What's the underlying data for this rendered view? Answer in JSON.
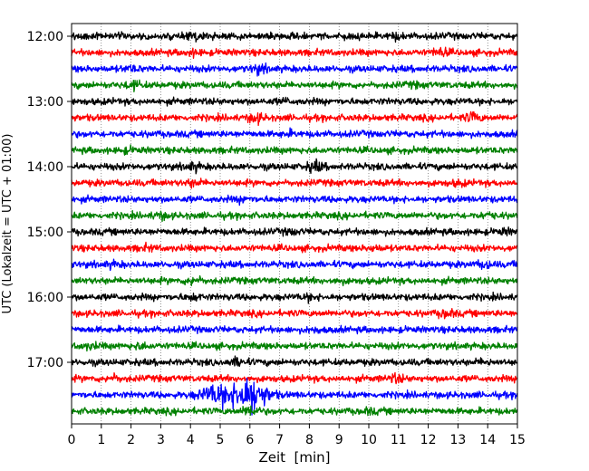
{
  "chart_data": {
    "type": "line",
    "title": "",
    "xlabel": "Zeit  [min]",
    "ylabel": "UTC (Lokalzeit = UTC + 01:00)",
    "xlim": [
      0,
      15
    ],
    "x_ticks": [
      0,
      1,
      2,
      3,
      4,
      5,
      6,
      7,
      8,
      9,
      10,
      11,
      12,
      13,
      14,
      15
    ],
    "y_tick_labels": [
      "12:00",
      "13:00",
      "14:00",
      "15:00",
      "16:00",
      "17:00"
    ],
    "grid": "vertical dotted lines at each minute",
    "trace_colors": [
      "#000000",
      "#ff0000",
      "#0000ff",
      "#008000"
    ],
    "row_interval_minutes": 15,
    "series": [
      {
        "start": "12:00",
        "color": "#000000",
        "bursts": [
          {
            "t": 4.1,
            "amp": 1.6
          },
          {
            "t": 10.9,
            "amp": 1.6
          }
        ]
      },
      {
        "start": "12:15",
        "color": "#ff0000",
        "bursts": [
          {
            "t": 4.1,
            "amp": 1.5
          },
          {
            "t": 12.4,
            "amp": 1.8
          }
        ]
      },
      {
        "start": "12:30",
        "color": "#0000ff",
        "bursts": [
          {
            "t": 2.0,
            "amp": 1.5
          },
          {
            "t": 6.3,
            "amp": 1.9
          }
        ]
      },
      {
        "start": "12:45",
        "color": "#008000",
        "bursts": [
          {
            "t": 2.1,
            "amp": 1.8
          },
          {
            "t": 11.5,
            "amp": 1.3
          }
        ]
      },
      {
        "start": "13:00",
        "color": "#000000",
        "bursts": [
          {
            "t": 7.2,
            "amp": 1.3
          }
        ]
      },
      {
        "start": "13:15",
        "color": "#ff0000",
        "bursts": [
          {
            "t": 6.2,
            "amp": 2.0
          },
          {
            "t": 13.5,
            "amp": 2.0
          }
        ]
      },
      {
        "start": "13:30",
        "color": "#0000ff",
        "bursts": [
          {
            "t": 7.3,
            "amp": 1.4
          }
        ]
      },
      {
        "start": "13:45",
        "color": "#008000",
        "bursts": [
          {
            "t": 1.9,
            "amp": 1.4
          }
        ]
      },
      {
        "start": "14:00",
        "color": "#000000",
        "bursts": [
          {
            "t": 4.1,
            "amp": 1.8
          },
          {
            "t": 8.2,
            "amp": 2.2
          }
        ]
      },
      {
        "start": "14:15",
        "color": "#ff0000",
        "bursts": [
          {
            "t": 4.1,
            "amp": 1.6
          },
          {
            "t": 13.0,
            "amp": 1.4
          }
        ]
      },
      {
        "start": "14:30",
        "color": "#0000ff",
        "bursts": [
          {
            "t": 5.8,
            "amp": 1.5
          }
        ]
      },
      {
        "start": "14:45",
        "color": "#008000",
        "bursts": [
          {
            "t": 3.0,
            "amp": 1.6
          },
          {
            "t": 14.0,
            "amp": 1.4
          }
        ]
      },
      {
        "start": "15:00",
        "color": "#000000",
        "bursts": [
          {
            "t": 7.4,
            "amp": 1.4
          },
          {
            "t": 14.6,
            "amp": 1.4
          }
        ]
      },
      {
        "start": "15:15",
        "color": "#ff0000",
        "bursts": [
          {
            "t": 2.5,
            "amp": 1.4
          },
          {
            "t": 10.2,
            "amp": 1.4
          }
        ]
      },
      {
        "start": "15:30",
        "color": "#0000ff",
        "bursts": [
          {
            "t": 1.4,
            "amp": 1.5
          },
          {
            "t": 13.9,
            "amp": 1.7
          }
        ]
      },
      {
        "start": "15:45",
        "color": "#008000",
        "bursts": [
          {
            "t": 4.1,
            "amp": 1.8
          },
          {
            "t": 9.0,
            "amp": 1.3
          }
        ]
      },
      {
        "start": "16:00",
        "color": "#000000",
        "bursts": [
          {
            "t": 4.1,
            "amp": 1.6
          },
          {
            "t": 8.0,
            "amp": 1.5
          }
        ]
      },
      {
        "start": "16:15",
        "color": "#ff0000",
        "bursts": [
          {
            "t": 12.6,
            "amp": 1.8
          }
        ]
      },
      {
        "start": "16:30",
        "color": "#0000ff",
        "bursts": [
          {
            "t": 8.2,
            "amp": 1.4
          }
        ]
      },
      {
        "start": "16:45",
        "color": "#008000",
        "bursts": [
          {
            "t": 0.6,
            "amp": 1.5
          },
          {
            "t": 2.3,
            "amp": 1.5
          }
        ]
      },
      {
        "start": "17:00",
        "color": "#000000",
        "bursts": [
          {
            "t": 5.6,
            "amp": 1.9
          },
          {
            "t": 13.9,
            "amp": 1.4
          }
        ]
      },
      {
        "start": "17:15",
        "color": "#ff0000",
        "bursts": [
          {
            "t": 1.4,
            "amp": 1.6
          },
          {
            "t": 10.9,
            "amp": 1.8
          }
        ]
      },
      {
        "start": "17:30",
        "color": "#0000ff",
        "bursts": [
          {
            "t": 6.0,
            "amp": 6.0
          },
          {
            "t": 4.9,
            "amp": 3.5
          }
        ]
      },
      {
        "start": "17:45",
        "color": "#008000",
        "bursts": [
          {
            "t": 6.0,
            "amp": 2.2
          },
          {
            "t": 10.0,
            "amp": 1.4
          }
        ]
      }
    ]
  }
}
